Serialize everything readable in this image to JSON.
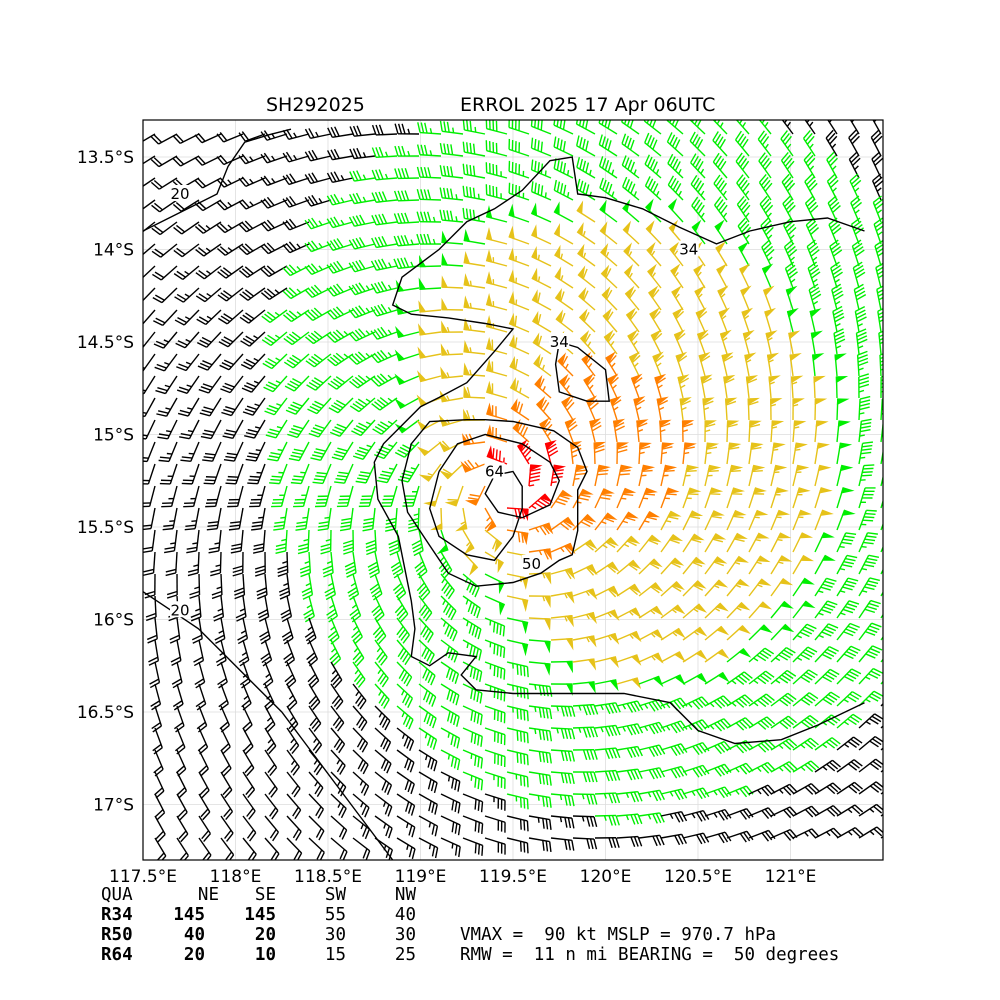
{
  "chart_data": {
    "type": "wind-barb map",
    "title_left": "SH292025",
    "title_right": "ERROL 2025 17 Apr 06UTC",
    "xlim": [
      117.5,
      121.5
    ],
    "ylim": [
      -17.3,
      -13.3
    ],
    "x_ticks": [
      {
        "value": 117.5,
        "label": "117.5°E"
      },
      {
        "value": 118.0,
        "label": "118°E"
      },
      {
        "value": 118.5,
        "label": "118.5°E"
      },
      {
        "value": 119.0,
        "label": "119°E"
      },
      {
        "value": 119.5,
        "label": "119.5°E"
      },
      {
        "value": 120.0,
        "label": "120°E"
      },
      {
        "value": 120.5,
        "label": "120.5°E"
      },
      {
        "value": 121.0,
        "label": "121°E"
      }
    ],
    "y_ticks": [
      {
        "value": -13.5,
        "label": "13.5°S"
      },
      {
        "value": -14.0,
        "label": "14°S"
      },
      {
        "value": -14.5,
        "label": "14.5°S"
      },
      {
        "value": -15.0,
        "label": "15°S"
      },
      {
        "value": -15.5,
        "label": "15.5°S"
      },
      {
        "value": -16.0,
        "label": "16°S"
      },
      {
        "value": -16.5,
        "label": "16.5°S"
      },
      {
        "value": -17.0,
        "label": "17°S"
      }
    ],
    "grid": true,
    "storm_center": [
      119.45,
      -15.3
    ],
    "barb_color_scale": [
      {
        "min": 0,
        "color": "#000000"
      },
      {
        "min": 34,
        "color": "#00ee00"
      },
      {
        "min": 50,
        "color": "#e6c21a"
      },
      {
        "min": 64,
        "color": "#ff7f00"
      },
      {
        "min": 80,
        "color": "#ff0000"
      }
    ],
    "contours": [
      {
        "level": 20,
        "label": "20",
        "points": [
          [
            117.5,
            -13.9
          ],
          [
            117.7,
            -13.8
          ],
          [
            117.9,
            -13.7
          ],
          [
            117.96,
            -13.55
          ],
          [
            118.05,
            -13.42
          ],
          [
            118.18,
            -13.38
          ],
          [
            118.3,
            -13.35
          ]
        ],
        "label_at": [
          117.7,
          -13.7
        ]
      },
      {
        "level": 20,
        "label": "20",
        "points": [
          [
            117.5,
            -15.85
          ],
          [
            117.65,
            -15.95
          ],
          [
            117.8,
            -16.05
          ],
          [
            117.95,
            -16.2
          ],
          [
            118.1,
            -16.35
          ],
          [
            118.25,
            -16.5
          ],
          [
            118.4,
            -16.7
          ],
          [
            118.55,
            -16.9
          ],
          [
            118.7,
            -17.1
          ],
          [
            118.85,
            -17.3
          ]
        ],
        "label_at": [
          117.7,
          -15.95
        ]
      },
      {
        "level": 34,
        "label": "34",
        "points": [
          [
            121.4,
            -13.9
          ],
          [
            121.2,
            -13.83
          ],
          [
            121.0,
            -13.85
          ],
          [
            120.78,
            -13.9
          ],
          [
            120.6,
            -13.97
          ],
          [
            120.4,
            -13.88
          ],
          [
            120.2,
            -13.78
          ],
          [
            120.0,
            -13.72
          ],
          [
            119.85,
            -13.7
          ],
          [
            119.82,
            -13.5
          ],
          [
            119.7,
            -13.52
          ],
          [
            119.55,
            -13.68
          ],
          [
            119.4,
            -13.78
          ],
          [
            119.25,
            -13.85
          ],
          [
            119.1,
            -14.0
          ],
          [
            118.9,
            -14.15
          ],
          [
            118.85,
            -14.3
          ],
          [
            118.95,
            -14.35
          ],
          [
            119.15,
            -14.37
          ],
          [
            119.35,
            -14.4
          ],
          [
            119.5,
            -14.43
          ],
          [
            119.4,
            -14.55
          ],
          [
            119.25,
            -14.72
          ],
          [
            119.1,
            -14.8
          ],
          [
            119.0,
            -14.85
          ],
          [
            118.9,
            -14.95
          ],
          [
            118.8,
            -15.05
          ],
          [
            118.75,
            -15.15
          ],
          [
            118.77,
            -15.35
          ],
          [
            118.88,
            -15.55
          ],
          [
            118.92,
            -15.75
          ],
          [
            118.95,
            -15.9
          ],
          [
            118.97,
            -16.05
          ],
          [
            118.95,
            -16.2
          ],
          [
            119.05,
            -16.25
          ],
          [
            119.15,
            -16.18
          ],
          [
            119.3,
            -16.2
          ],
          [
            119.22,
            -16.3
          ],
          [
            119.3,
            -16.38
          ],
          [
            119.5,
            -16.4
          ],
          [
            119.8,
            -16.4
          ],
          [
            120.1,
            -16.4
          ],
          [
            120.35,
            -16.45
          ],
          [
            120.5,
            -16.6
          ],
          [
            120.7,
            -16.67
          ],
          [
            120.95,
            -16.65
          ],
          [
            121.15,
            -16.57
          ],
          [
            121.4,
            -16.45
          ]
        ],
        "label_at": [
          120.45,
          -14.0
        ]
      },
      {
        "level": 34,
        "label": "34",
        "points": [
          [
            119.75,
            -14.5
          ],
          [
            119.85,
            -14.53
          ],
          [
            120.0,
            -14.65
          ],
          [
            120.02,
            -14.82
          ],
          [
            119.9,
            -14.82
          ],
          [
            119.75,
            -14.77
          ],
          [
            119.73,
            -14.62
          ],
          [
            119.75,
            -14.5
          ]
        ],
        "label_at": [
          119.75,
          -14.5
        ]
      },
      {
        "level": 50,
        "label": "50",
        "points": [
          [
            119.25,
            -14.92
          ],
          [
            119.05,
            -14.93
          ],
          [
            118.95,
            -15.05
          ],
          [
            118.9,
            -15.25
          ],
          [
            118.93,
            -15.42
          ],
          [
            119.05,
            -15.6
          ],
          [
            119.15,
            -15.75
          ],
          [
            119.3,
            -15.82
          ],
          [
            119.5,
            -15.8
          ],
          [
            119.65,
            -15.75
          ],
          [
            119.75,
            -15.68
          ],
          [
            119.82,
            -15.65
          ],
          [
            119.85,
            -15.52
          ],
          [
            119.85,
            -15.3
          ],
          [
            119.9,
            -15.2
          ],
          [
            119.85,
            -15.07
          ],
          [
            119.72,
            -14.98
          ],
          [
            119.5,
            -14.93
          ],
          [
            119.35,
            -14.92
          ],
          [
            119.25,
            -14.92
          ]
        ],
        "label_at": [
          119.6,
          -15.7
        ]
      },
      {
        "level": 64,
        "label": "64",
        "points": [
          [
            119.1,
            -15.2
          ],
          [
            119.2,
            -15.05
          ],
          [
            119.35,
            -15.0
          ],
          [
            119.55,
            -15.05
          ],
          [
            119.7,
            -15.15
          ],
          [
            119.75,
            -15.25
          ],
          [
            119.7,
            -15.38
          ],
          [
            119.55,
            -15.45
          ],
          [
            119.42,
            -15.42
          ],
          [
            119.35,
            -15.32
          ],
          [
            119.4,
            -15.22
          ],
          [
            119.5,
            -15.2
          ],
          [
            119.55,
            -15.28
          ],
          [
            119.55,
            -15.4
          ],
          [
            119.5,
            -15.55
          ],
          [
            119.4,
            -15.68
          ],
          [
            119.25,
            -15.65
          ],
          [
            119.1,
            -15.55
          ],
          [
            119.05,
            -15.4
          ],
          [
            119.1,
            -15.2
          ]
        ],
        "label_at": [
          119.4,
          -15.2
        ]
      }
    ]
  },
  "table": {
    "header": [
      "QUA",
      "NE",
      "SE",
      "SW",
      "NW"
    ],
    "rows": [
      {
        "label": "R34",
        "values": [
          "145",
          "145",
          "55",
          "40"
        ]
      },
      {
        "label": "R50",
        "values": [
          "40",
          "20",
          "30",
          "30"
        ]
      },
      {
        "label": "R64",
        "values": [
          "20",
          "10",
          "15",
          "25"
        ]
      }
    ],
    "vmax_line": "VMAX =  90 kt MSLP = 970.7 hPa",
    "rmw_line": "RMW =  11 n mi BEARING =  50 degrees"
  }
}
